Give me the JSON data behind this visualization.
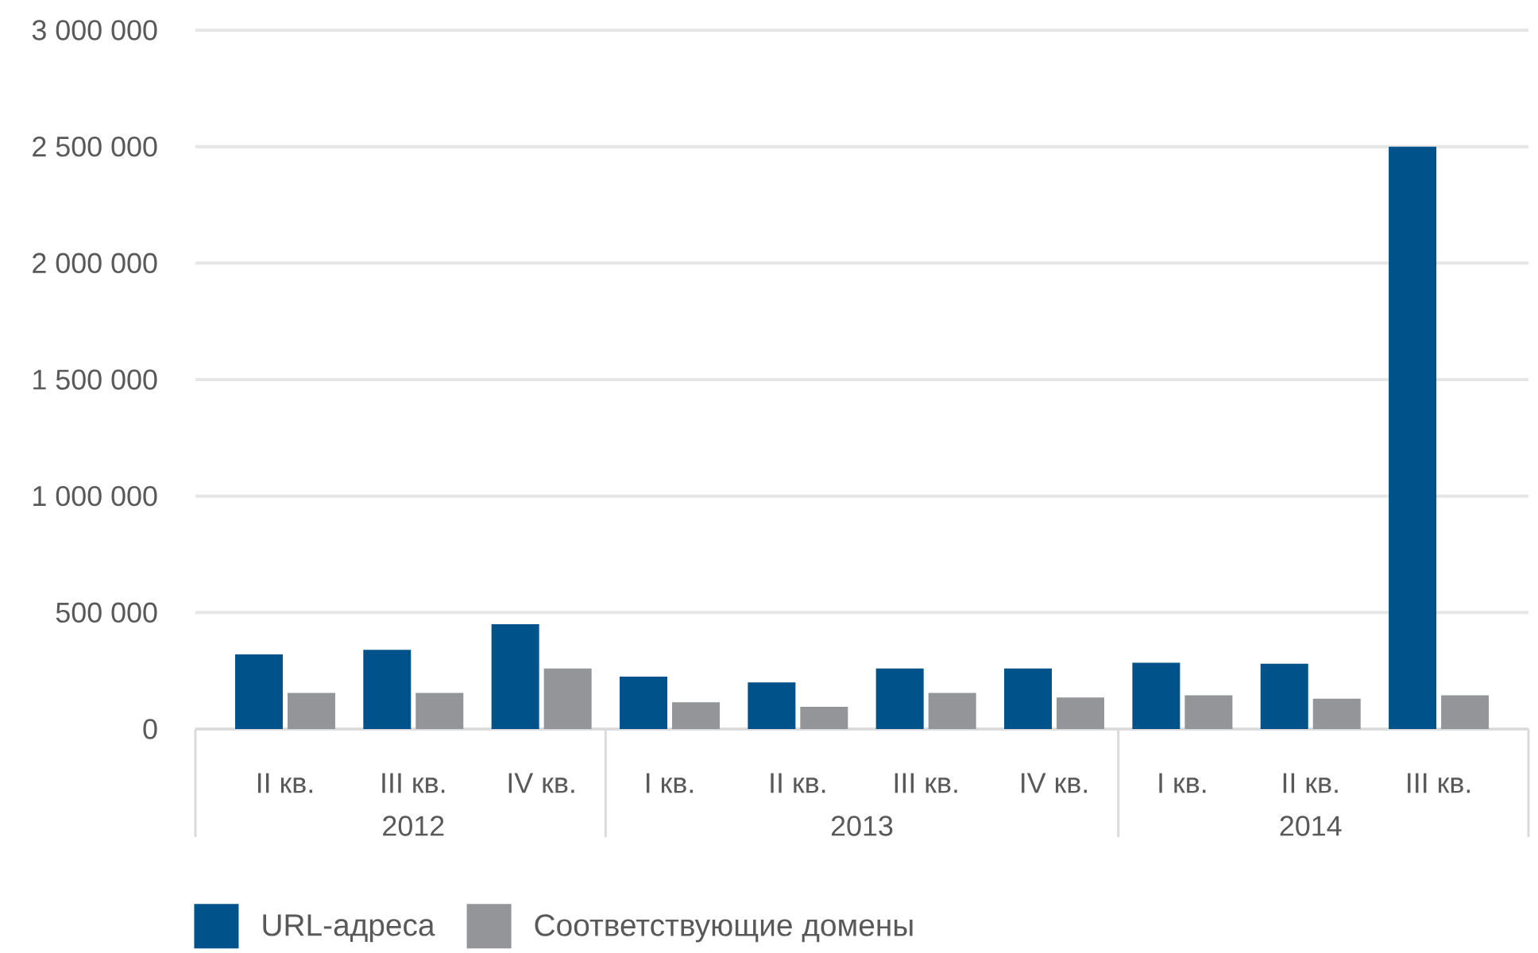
{
  "chart_data": {
    "type": "bar",
    "categories": [
      "II кв.",
      "III кв.",
      "IV кв.",
      "I кв.",
      "II кв.",
      "III кв.",
      "IV кв.",
      "I кв.",
      "II кв.",
      "III кв."
    ],
    "series": [
      {
        "name": "URL-адреса",
        "color": "#00538a",
        "values": [
          320000,
          340000,
          450000,
          225000,
          200000,
          260000,
          260000,
          285000,
          280000,
          2500000
        ]
      },
      {
        "name": "Соответствующие домены",
        "color": "#939598",
        "values": [
          155000,
          155000,
          260000,
          115000,
          95000,
          155000,
          135000,
          145000,
          130000,
          145000
        ]
      }
    ],
    "ylim": [
      0,
      3000000
    ],
    "yticks": [
      0,
      {
        "value": 500000,
        "label": "500 000"
      },
      {
        "value": 1000000,
        "label": "1 000 000"
      },
      {
        "value": 1500000,
        "label": "1 500 000"
      },
      {
        "value": 2000000,
        "label": "2 000 000"
      },
      {
        "value": 2500000,
        "label": "2 500 000"
      },
      {
        "value": 3000000,
        "label": "3 000 000"
      }
    ],
    "grid": "y",
    "legend": "bottom",
    "annotations": [
      "2012",
      "2013",
      "2014"
    ]
  }
}
